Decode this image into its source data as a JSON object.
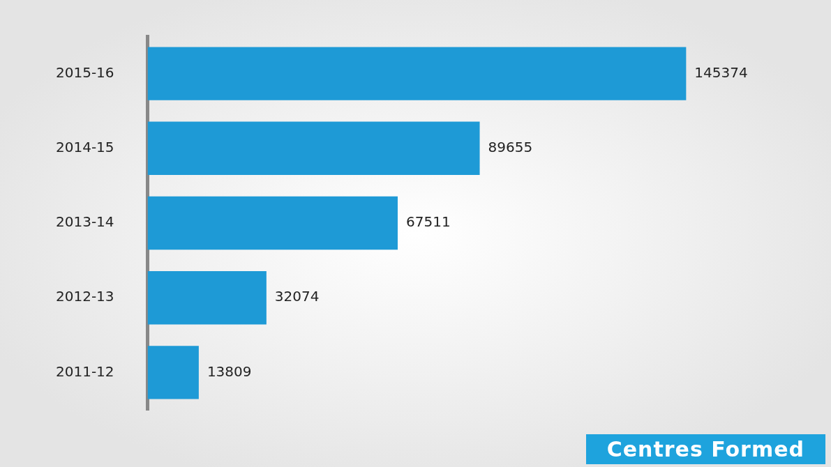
{
  "chart_data": {
    "type": "bar",
    "orientation": "horizontal",
    "title": "Centres Formed",
    "categories": [
      "2015-16",
      "2014-15",
      "2013-14",
      "2012-13",
      "2011-12"
    ],
    "values": [
      145374,
      89655,
      67511,
      32074,
      13809
    ],
    "color": "#1e9ad6",
    "data_labels": true,
    "tick_labels": "y",
    "legend": false
  }
}
